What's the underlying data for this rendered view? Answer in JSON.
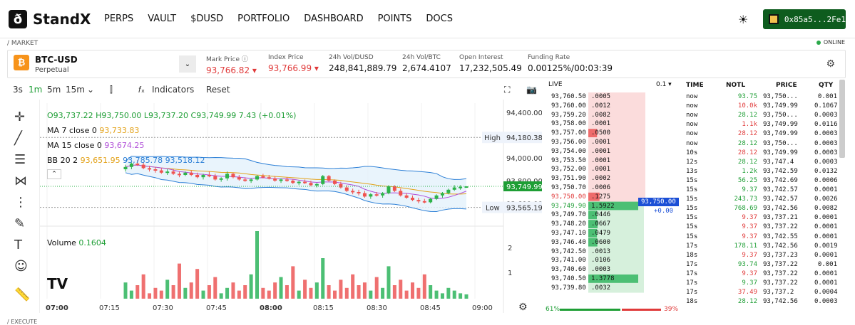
{
  "nav": {
    "logo": "StandX",
    "menu": [
      "PERPS",
      "VAULT",
      "$DUSD",
      "PORTFOLIO",
      "DASHBOARD",
      "POINTS",
      "DOCS"
    ],
    "wallet": "0x85a5...2Fe1"
  },
  "crumbs": {
    "market": "/ MARKET",
    "execute": "/ EXECUTE",
    "online": "ONLINE"
  },
  "ticker": {
    "symbol": "BTC-USD",
    "sub": "Perpetual",
    "stats": [
      {
        "label": "Mark Price ⓘ",
        "value": "93,766.82 ▾",
        "color": "red"
      },
      {
        "label": "Index Price",
        "value": "93,766.99 ▾",
        "color": "red"
      },
      {
        "label": "24h Vol/DUSD",
        "value": "248,841,889.79",
        "color": "plain"
      },
      {
        "label": "24h Vol/BTC",
        "value": "2,674.4107",
        "color": "plain"
      },
      {
        "label": "Open Interest",
        "value": "17,232,505.49",
        "color": "plain"
      },
      {
        "label": "Funding Rate",
        "value": "0.00125%/00:03:39",
        "color": "plain"
      }
    ]
  },
  "toolbar": {
    "intervals": [
      "3s",
      "1m",
      "5m",
      "15m"
    ],
    "active": "1m",
    "indicators": "Indicators",
    "reset": "Reset"
  },
  "legend": {
    "ohlc": {
      "o": "O93,737.22",
      "h": "H93,750.00",
      "l": "L93,737.20",
      "c": "C93,749.99",
      "chg": "7.43 (+0.01%)"
    },
    "ma7": {
      "label": "MA 7 close 0",
      "value": "93,733.83"
    },
    "ma15": {
      "label": "MA 15 close 0",
      "value": "93,674.25"
    },
    "bb": {
      "label": "BB 20 2",
      "v1": "93,651.95",
      "v2": "93,785.78",
      "v3": "93,518.12"
    },
    "volume": {
      "label": "Volume",
      "value": "0.1604"
    }
  },
  "chart_data": {
    "type": "candlestick",
    "price_ticks": [
      "94,400.00",
      "94,000.00",
      "93,800.00",
      "93,600.00"
    ],
    "volume_ticks": [
      "2",
      "1"
    ],
    "time_ticks": [
      "07:00",
      "07:15",
      "07:30",
      "07:45",
      "08:00",
      "08:15",
      "08:30",
      "08:45",
      "09:00"
    ],
    "high_label": "High",
    "high_value": "94,180.38",
    "low_label": "Low",
    "low_value": "93,565.19",
    "last": "93,749.99",
    "candles": [
      [
        93900,
        93940,
        93880,
        93920
      ],
      [
        93920,
        93960,
        93900,
        93950
      ],
      [
        93950,
        93980,
        93930,
        93940
      ],
      [
        93940,
        93960,
        93900,
        93910
      ],
      [
        93910,
        93930,
        93880,
        93900
      ],
      [
        93900,
        93920,
        93870,
        93890
      ],
      [
        93890,
        93910,
        93860,
        93870
      ],
      [
        93870,
        93900,
        93850,
        93880
      ],
      [
        93880,
        93900,
        93850,
        93860
      ],
      [
        93860,
        93880,
        93830,
        93850
      ],
      [
        93850,
        93880,
        93840,
        93870
      ],
      [
        93870,
        93890,
        93840,
        93850
      ],
      [
        93850,
        93870,
        93820,
        93830
      ],
      [
        93830,
        93860,
        93810,
        93850
      ],
      [
        93850,
        93880,
        93830,
        93840
      ],
      [
        93840,
        93860,
        93800,
        93810
      ],
      [
        93810,
        93830,
        93790,
        93820
      ],
      [
        93820,
        93880,
        93800,
        93860
      ],
      [
        93860,
        93870,
        93820,
        93830
      ],
      [
        93830,
        93850,
        93800,
        93810
      ],
      [
        93810,
        93830,
        93790,
        93800
      ],
      [
        93800,
        93820,
        93780,
        93810
      ],
      [
        93810,
        93850,
        93800,
        93840
      ],
      [
        93840,
        93860,
        93820,
        93830
      ],
      [
        93830,
        93850,
        93810,
        93820
      ],
      [
        93820,
        93840,
        93790,
        93800
      ],
      [
        93800,
        93820,
        93780,
        93810
      ],
      [
        93810,
        93830,
        93790,
        93800
      ],
      [
        93800,
        93810,
        93770,
        93780
      ],
      [
        93780,
        93800,
        93760,
        93790
      ],
      [
        93790,
        93810,
        93770,
        93780
      ],
      [
        93780,
        93800,
        93750,
        93760
      ],
      [
        93760,
        93780,
        93740,
        93770
      ],
      [
        93770,
        93850,
        93760,
        93840
      ],
      [
        93840,
        93850,
        93790,
        93800
      ],
      [
        93800,
        93810,
        93760,
        93770
      ],
      [
        93770,
        93790,
        93730,
        93740
      ],
      [
        93740,
        93760,
        93700,
        93710
      ],
      [
        93710,
        93730,
        93680,
        93700
      ],
      [
        93700,
        93720,
        93670,
        93690
      ],
      [
        93690,
        93710,
        93650,
        93660
      ],
      [
        93660,
        93690,
        93640,
        93680
      ],
      [
        93680,
        93700,
        93660,
        93670
      ],
      [
        93670,
        93700,
        93650,
        93690
      ],
      [
        93690,
        93760,
        93680,
        93750
      ],
      [
        93750,
        93760,
        93700,
        93710
      ],
      [
        93710,
        93730,
        93660,
        93670
      ],
      [
        93670,
        93690,
        93640,
        93650
      ],
      [
        93650,
        93670,
        93620,
        93630
      ],
      [
        93630,
        93650,
        93600,
        93620
      ],
      [
        93620,
        93640,
        93600,
        93610
      ],
      [
        93610,
        93650,
        93600,
        93640
      ],
      [
        93640,
        93680,
        93630,
        93670
      ],
      [
        93670,
        93700,
        93650,
        93690
      ],
      [
        93690,
        93730,
        93680,
        93720
      ],
      [
        93720,
        93760,
        93710,
        93740
      ],
      [
        93740,
        93760,
        93720,
        93745
      ],
      [
        93737,
        93750,
        93737,
        93750
      ]
    ],
    "volumes": [
      0.6,
      0.3,
      0.5,
      0.9,
      0.2,
      0.4,
      0.3,
      0.7,
      0.5,
      1.3,
      0.4,
      0.6,
      1.1,
      0.3,
      0.5,
      0.8,
      0.2,
      0.4,
      0.6,
      0.3,
      0.5,
      0.9,
      2.5,
      0.4,
      0.3,
      0.6,
      0.8,
      0.5,
      1.2,
      0.3,
      0.7,
      0.4,
      0.6,
      1.5,
      0.5,
      0.3,
      0.7,
      0.4,
      0.9,
      0.5,
      0.6,
      0.3,
      0.8,
      0.4,
      1.2,
      0.5,
      0.7,
      0.3,
      0.6,
      0.4,
      0.9,
      0.5,
      0.3,
      0.2,
      0.4,
      0.3,
      0.2,
      0.16
    ]
  },
  "orderbook": {
    "title": "LIVE",
    "step": "0.1 ▾",
    "asks": [
      [
        "93,760.50",
        ".0005"
      ],
      [
        "93,760.00",
        ".0012"
      ],
      [
        "93,759.20",
        ".0082"
      ],
      [
        "93,758.00",
        ".0001"
      ],
      [
        "93,757.00",
        ".0500"
      ],
      [
        "93,756.00",
        ".0001"
      ],
      [
        "93,754.00",
        ".0001"
      ],
      [
        "93,753.50",
        ".0001"
      ],
      [
        "93,752.00",
        ".0001"
      ],
      [
        "93,751.90",
        ".0002"
      ],
      [
        "93,750.70",
        ".0006"
      ],
      [
        "93,750.00",
        ".1275"
      ]
    ],
    "bids": [
      [
        "93,749.90",
        "1.5922"
      ],
      [
        "93,749.70",
        ".0446"
      ],
      [
        "93,748.20",
        ".0667"
      ],
      [
        "93,747.10",
        ".0479"
      ],
      [
        "93,746.40",
        ".0600"
      ],
      [
        "93,742.50",
        ".0013"
      ],
      [
        "93,741.00",
        ".0106"
      ],
      [
        "93,740.60",
        ".0003"
      ],
      [
        "93,740.50",
        "1.3778"
      ],
      [
        "93,739.80",
        ".0032"
      ]
    ],
    "mid": "93,750.00",
    "mid_change": "+0.00",
    "buy_pct": "61%",
    "sell_pct": "39%"
  },
  "trades": {
    "headers": [
      "TIME",
      "NOTL",
      "PRICE",
      "QTY"
    ],
    "rows": [
      [
        "now",
        "93.75",
        "93,750...",
        "0.001",
        "g"
      ],
      [
        "now",
        "10.0k",
        "93,749.99",
        "0.1067",
        "r"
      ],
      [
        "now",
        "28.12",
        "93,750...",
        "0.0003",
        "g"
      ],
      [
        "now",
        "1.1k",
        "93,749.99",
        "0.0116",
        "r"
      ],
      [
        "now",
        "28.12",
        "93,749.99",
        "0.0003",
        "r"
      ],
      [
        "now",
        "28.12",
        "93,750...",
        "0.0003",
        "g"
      ],
      [
        "10s",
        "28.12",
        "93,749.99",
        "0.0003",
        "r"
      ],
      [
        "12s",
        "28.12",
        "93,747.4",
        "0.0003",
        "g"
      ],
      [
        "13s",
        "1.2k",
        "93,742.59",
        "0.0132",
        "g"
      ],
      [
        "15s",
        "56.25",
        "93,742.69",
        "0.0006",
        "g"
      ],
      [
        "15s",
        "9.37",
        "93,742.57",
        "0.0001",
        "g"
      ],
      [
        "15s",
        "243.73",
        "93,742.57",
        "0.0026",
        "g"
      ],
      [
        "15s",
        "768.69",
        "93,742.56",
        "0.0082",
        "g"
      ],
      [
        "15s",
        "9.37",
        "93,737.21",
        "0.0001",
        "r"
      ],
      [
        "15s",
        "9.37",
        "93,737.22",
        "0.0001",
        "r"
      ],
      [
        "15s",
        "9.37",
        "93,742.55",
        "0.0001",
        "r"
      ],
      [
        "17s",
        "178.11",
        "93,742.56",
        "0.0019",
        "g"
      ],
      [
        "18s",
        "9.37",
        "93,737.23",
        "0.0001",
        "r"
      ],
      [
        "17s",
        "93.74",
        "93,737.22",
        "0.001",
        "g"
      ],
      [
        "17s",
        "9.37",
        "93,737.22",
        "0.0001",
        "r"
      ],
      [
        "17s",
        "9.37",
        "93,737.22",
        "0.0001",
        "g"
      ],
      [
        "17s",
        "37.49",
        "93,737.2",
        "0.0004",
        "r"
      ],
      [
        "18s",
        "28.12",
        "93,742.56",
        "0.0003",
        "g"
      ]
    ]
  }
}
